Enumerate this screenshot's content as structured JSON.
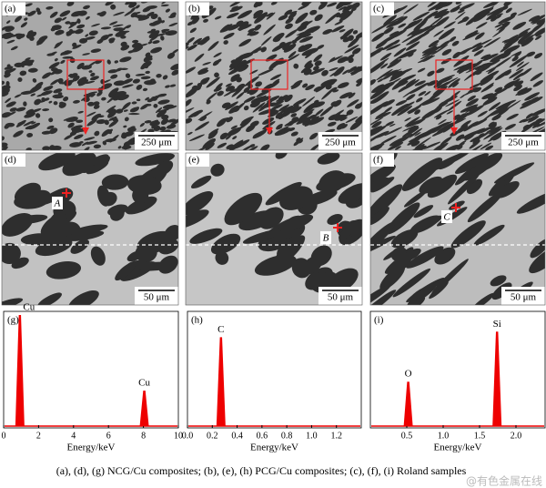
{
  "micrographs": [
    {
      "label": "(a)",
      "scale": "250 μm"
    },
    {
      "label": "(b)",
      "scale": "250 μm"
    },
    {
      "label": "(c)",
      "scale": "250 μm"
    },
    {
      "label": "(d)",
      "scale": "50 μm",
      "point": "A"
    },
    {
      "label": "(e)",
      "scale": "50 μm",
      "point": "B"
    },
    {
      "label": "(f)",
      "scale": "50 μm",
      "point": "C"
    }
  ],
  "spectra": [
    {
      "label": "(g)",
      "xlabel": "Energy/keV",
      "xlim": [
        0,
        10
      ],
      "xticks": [
        0,
        2,
        4,
        6,
        8,
        10
      ],
      "peaks": [
        {
          "label": "Cu",
          "energy": 0.93,
          "intensity": 100
        },
        {
          "label": "Cu",
          "energy": 8.05,
          "intensity": 32
        }
      ]
    },
    {
      "label": "(h)",
      "xlabel": "Energy/keV",
      "xlim": [
        0,
        1.4
      ],
      "xticks": [
        {
          "value": 0,
          "label": "0.0"
        },
        0.2,
        0.4,
        0.6,
        0.8,
        {
          "value": 1,
          "label": "1.0"
        },
        1.2
      ],
      "peaks": [
        {
          "label": "C",
          "energy": 0.27,
          "intensity": 80
        }
      ]
    },
    {
      "label": "(i)",
      "xlabel": "Energy/keV",
      "xlim": [
        0,
        2.4
      ],
      "xticks": [
        0.5,
        {
          "value": 1,
          "label": "1.0"
        },
        1.5,
        {
          "value": 2,
          "label": "2.0"
        }
      ],
      "peaks": [
        {
          "label": "O",
          "energy": 0.52,
          "intensity": 40
        },
        {
          "label": "Si",
          "energy": 1.74,
          "intensity": 85
        }
      ]
    }
  ],
  "caption": "(a),  (d),  (g)  NCG/Cu composites; (b), (e), (h) PCG/Cu composites; (c), (f), (i) Roland samples",
  "watermark": "@有色金属在线"
}
